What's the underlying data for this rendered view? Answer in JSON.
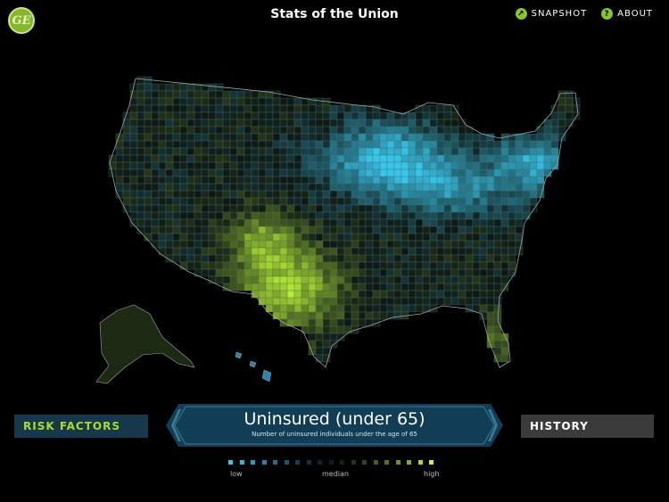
{
  "header": {
    "logo": "GE",
    "title": "Stats of the Union",
    "snapshot_label": "SNAPSHOT",
    "about_label": "ABOUT"
  },
  "panels": {
    "left_label": "RISK FACTORS",
    "right_label": "HISTORY"
  },
  "metric": {
    "title": "Uninsured (under 65)",
    "subtitle": "Number of uninsured individuals under the age of 65"
  },
  "legend": {
    "low": "low",
    "median": "median",
    "high": "high",
    "colors": [
      "#35c6ec",
      "#2fb4d8",
      "#2a9fc1",
      "#2587a6",
      "#1e6f8a",
      "#175870",
      "#124457",
      "#0e3342",
      "#0b2631",
      "#0a1c20",
      "#18220c",
      "#253512",
      "#334a17",
      "#42611b",
      "#52781f",
      "#659325",
      "#7bb12b",
      "#a0de2f",
      "#c8f538"
    ]
  },
  "map": {
    "colors": {
      "low": "#35c6ec",
      "median": "#0c1712",
      "high": "#b9f331",
      "border": "#5b6b6b"
    }
  }
}
